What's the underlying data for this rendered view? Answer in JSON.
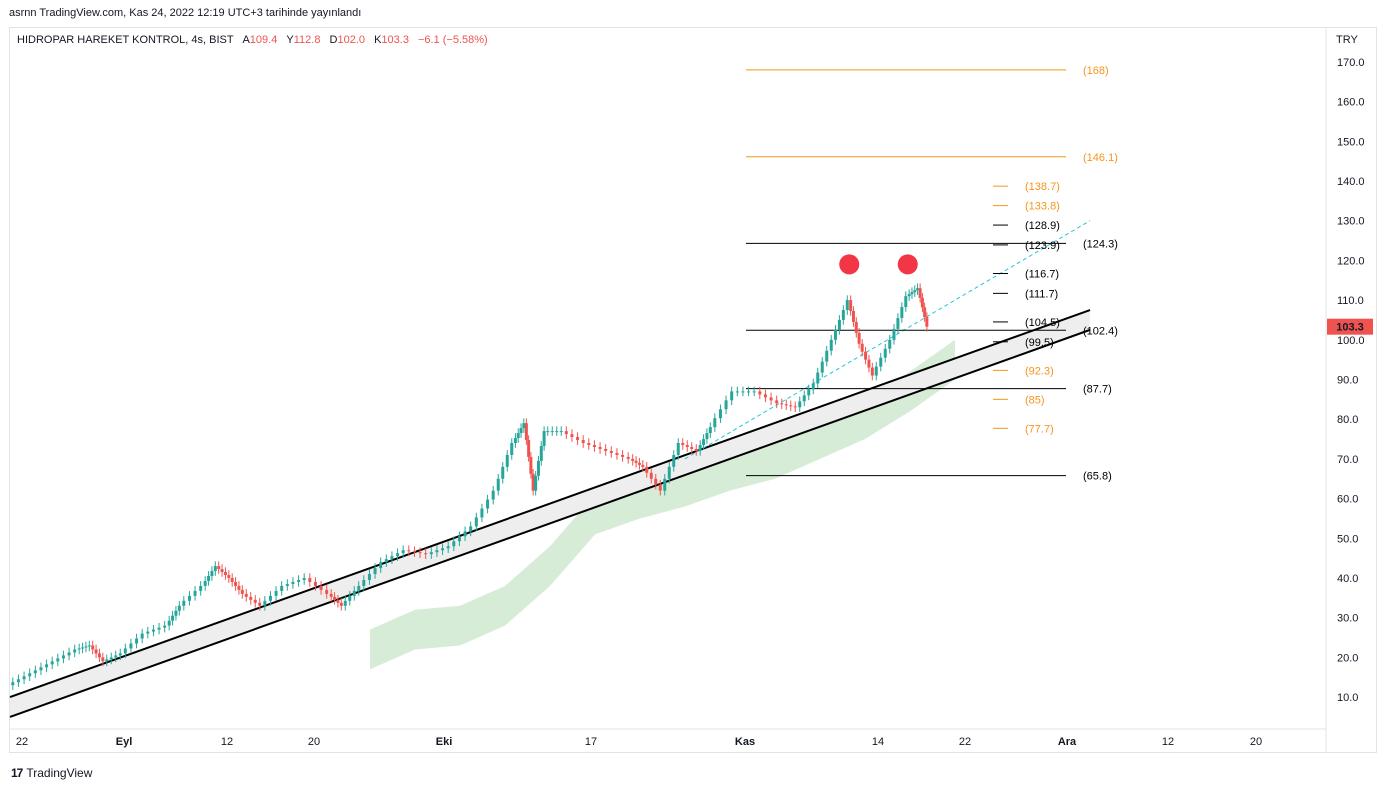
{
  "header": {
    "attribution": "asrnn TradingView.com, Kas 24, 2022 12:19 UTC+3 tarihinde yayınlandı",
    "symbol": "HIDROPAR HAREKET KONTROL, 4s, BIST",
    "open_label": "A",
    "open_value": "109.4",
    "high_label": "Y",
    "high_value": "112.8",
    "low_label": "D",
    "low_value": "102.0",
    "close_label": "K",
    "close_value": "103.3",
    "change": "−6.1 (−5.58%)",
    "currency": "TRY"
  },
  "footer": {
    "brand": "TradingView",
    "logo": "17"
  },
  "colors": {
    "up": "#26a69a",
    "down": "#ef5350",
    "orange": "#f7941d",
    "cloud": "#c8e6c9",
    "trend": "#000000",
    "dashed": "#26c6da"
  },
  "chart_data": {
    "type": "candlestick",
    "y_ticks": [
      10,
      20,
      30,
      40,
      50,
      60,
      70,
      80,
      90,
      100,
      110,
      120,
      130,
      140,
      150,
      160,
      170
    ],
    "y_tick_labels": [
      "10.0",
      "20.0",
      "30.0",
      "40.0",
      "50.0",
      "60.0",
      "70.0",
      "80.0",
      "90.0",
      "100.0",
      "110.0",
      "120.0",
      "130.0",
      "140.0",
      "150.0",
      "160.0",
      "170.0"
    ],
    "x_ticks": [
      {
        "label": "22",
        "bold": false
      },
      {
        "label": "Eyl",
        "bold": true
      },
      {
        "label": "12",
        "bold": false
      },
      {
        "label": "20",
        "bold": false
      },
      {
        "label": "Eki",
        "bold": true
      },
      {
        "label": "17",
        "bold": false
      },
      {
        "label": "Kas",
        "bold": true
      },
      {
        "label": "14",
        "bold": false
      },
      {
        "label": "22",
        "bold": false
      },
      {
        "label": "Ara",
        "bold": true
      },
      {
        "label": "12",
        "bold": false
      },
      {
        "label": "20",
        "bold": false
      }
    ],
    "last_price": "103.3",
    "levels_long": [
      {
        "value": 168,
        "label": "(168)",
        "color": "orange"
      },
      {
        "value": 146.1,
        "label": "(146.1)",
        "color": "orange"
      },
      {
        "value": 124.3,
        "label": "(124.3)",
        "color": "black"
      },
      {
        "value": 102.4,
        "label": "(102.4)",
        "color": "black"
      },
      {
        "value": 87.7,
        "label": "(87.7)",
        "color": "black"
      },
      {
        "value": 65.8,
        "label": "(65.8)",
        "color": "black"
      }
    ],
    "levels_short": [
      {
        "value": 138.7,
        "label": "(138.7)",
        "color": "orange"
      },
      {
        "value": 133.8,
        "label": "(133.8)",
        "color": "orange"
      },
      {
        "value": 128.9,
        "label": "(128.9)",
        "color": "black"
      },
      {
        "value": 123.9,
        "label": "(123.9)",
        "color": "black"
      },
      {
        "value": 116.7,
        "label": "(116.7)",
        "color": "black"
      },
      {
        "value": 111.7,
        "label": "(111.7)",
        "color": "black"
      },
      {
        "value": 104.5,
        "label": "(104.5)",
        "color": "black"
      },
      {
        "value": 99.5,
        "label": "(99.5)",
        "color": "black"
      },
      {
        "value": 92.3,
        "label": "(92.3)",
        "color": "orange"
      },
      {
        "value": 85,
        "label": "(85)",
        "color": "orange"
      },
      {
        "value": 77.7,
        "label": "(77.7)",
        "color": "orange"
      }
    ],
    "price_path": [
      [
        0,
        13
      ],
      [
        1,
        16
      ],
      [
        2,
        19
      ],
      [
        3,
        22
      ],
      [
        3.6,
        23
      ],
      [
        4.2,
        19
      ],
      [
        5,
        21
      ],
      [
        6,
        26
      ],
      [
        7,
        28
      ],
      [
        7.6,
        33
      ],
      [
        8.6,
        38
      ],
      [
        9.2,
        43
      ],
      [
        9.8,
        40
      ],
      [
        10.4,
        36
      ],
      [
        11.2,
        33
      ],
      [
        12.2,
        38
      ],
      [
        13.2,
        40
      ],
      [
        14.2,
        36
      ],
      [
        14.8,
        33
      ],
      [
        15.6,
        38
      ],
      [
        16.6,
        44
      ],
      [
        17.6,
        47
      ],
      [
        18.6,
        46
      ],
      [
        19.6,
        48
      ],
      [
        20.6,
        53
      ],
      [
        21.6,
        62
      ],
      [
        22.4,
        74
      ],
      [
        22.9,
        79
      ],
      [
        23.3,
        62
      ],
      [
        23.8,
        77
      ],
      [
        24.6,
        77
      ],
      [
        25.6,
        74
      ],
      [
        26.6,
        72
      ],
      [
        27.6,
        70
      ],
      [
        28.2,
        68
      ],
      [
        29,
        62
      ],
      [
        29.8,
        74
      ],
      [
        30.6,
        72
      ],
      [
        31.2,
        78
      ],
      [
        32.2,
        87
      ],
      [
        33.2,
        87
      ],
      [
        34.2,
        84
      ],
      [
        35,
        83
      ],
      [
        35.8,
        89
      ],
      [
        36.6,
        100
      ],
      [
        37.3,
        110
      ],
      [
        37.8,
        99
      ],
      [
        38.4,
        91
      ],
      [
        39.2,
        100
      ],
      [
        39.9,
        111
      ],
      [
        40.4,
        113
      ],
      [
        40.8,
        103.3
      ]
    ],
    "markers": [
      {
        "t": 37.3,
        "value": 119
      },
      {
        "t": 39.9,
        "value": 119
      }
    ],
    "cloud": [
      [
        16,
        27
      ],
      [
        18,
        32
      ],
      [
        20,
        33
      ],
      [
        22,
        38
      ],
      [
        24,
        48
      ],
      [
        26,
        61
      ],
      [
        28,
        65
      ],
      [
        30,
        68
      ],
      [
        32,
        72
      ],
      [
        34,
        75
      ],
      [
        36,
        80
      ],
      [
        38,
        85
      ],
      [
        40,
        92
      ],
      [
        42,
        100
      ]
    ],
    "channel": {
      "start": [
        0,
        10
      ],
      "end": [
        48,
        107.5
      ],
      "width": 5
    },
    "dashed_line": {
      "start": [
        30,
        70
      ],
      "end": [
        48,
        130
      ]
    }
  }
}
